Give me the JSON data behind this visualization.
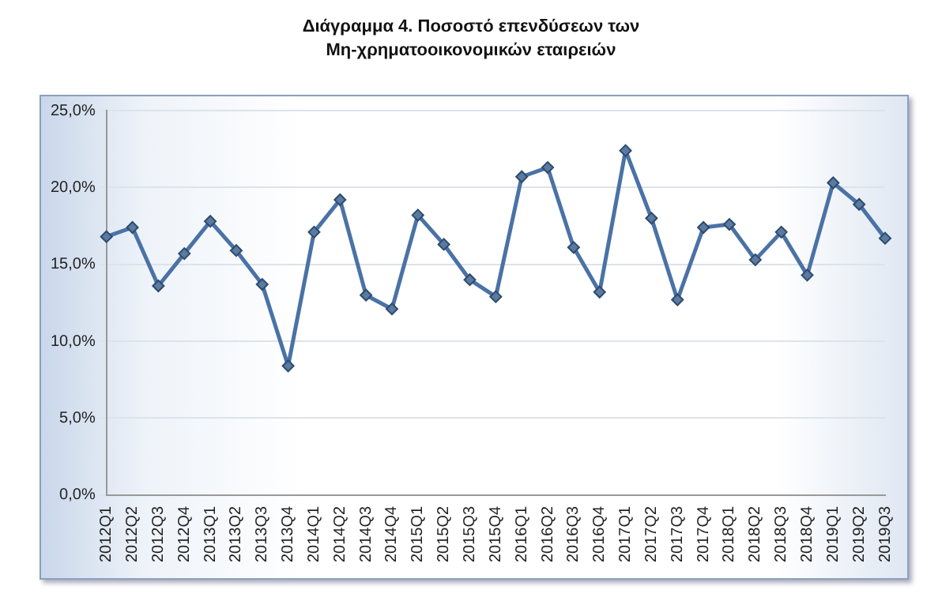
{
  "chart_data": {
    "type": "line",
    "title": "Διάγραμμα 4. Ποσοστό επενδύσεων των\nΜη-χρηματοοικονομικών εταιρειών",
    "categories": [
      "2012Q1",
      "2012Q2",
      "2012Q3",
      "2012Q4",
      "2013Q1",
      "2013Q2",
      "2013Q3",
      "2013Q4",
      "2014Q1",
      "2014Q2",
      "2014Q3",
      "2014Q4",
      "2015Q1",
      "2015Q2",
      "2015Q3",
      "2015Q4",
      "2016Q1",
      "2016Q2",
      "2016Q3",
      "2016Q4",
      "2017Q1",
      "2017Q2",
      "2017Q3",
      "2017Q4",
      "2018Q1",
      "2018Q2",
      "2018Q3",
      "2018Q4",
      "2019Q1",
      "2019Q2",
      "2019Q3"
    ],
    "series": [
      {
        "color": "#4a72a6",
        "values": [
          16.8,
          17.4,
          13.6,
          15.7,
          17.8,
          15.9,
          13.7,
          8.4,
          17.1,
          19.2,
          13.0,
          12.1,
          18.2,
          16.3,
          14.0,
          12.9,
          20.7,
          21.3,
          16.1,
          13.2,
          22.4,
          18.0,
          12.7,
          17.4,
          17.6,
          15.3,
          17.1,
          14.3,
          20.3,
          18.9,
          16.7
        ]
      }
    ],
    "ylim": [
      0,
      25
    ],
    "yticks": [
      {
        "value": 0,
        "label": "0,0%"
      },
      {
        "value": 5,
        "label": "5,0%"
      },
      {
        "value": 10,
        "label": "10,0%"
      },
      {
        "value": 15,
        "label": "15,0%"
      },
      {
        "value": 20,
        "label": "20,0%"
      },
      {
        "value": 25,
        "label": "25,0%"
      }
    ],
    "grid": "y",
    "marker": "diamond",
    "line_style": "solid",
    "legend": false
  }
}
